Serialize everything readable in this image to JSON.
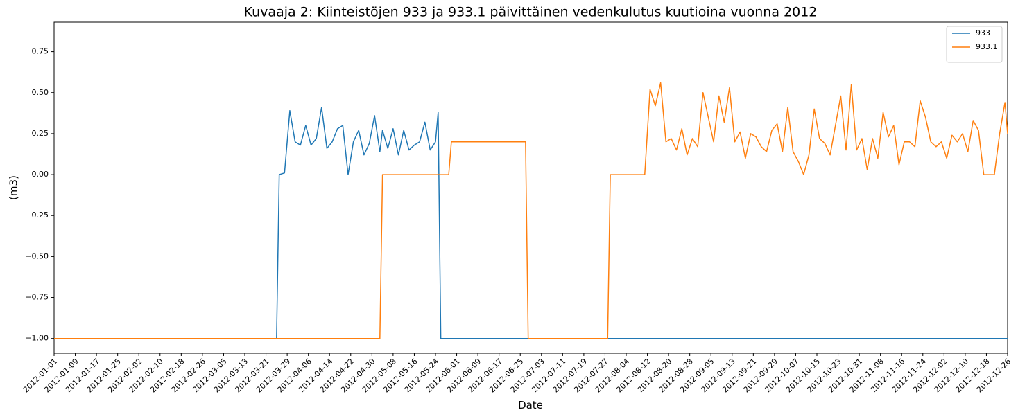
{
  "chart_data": {
    "type": "line",
    "title": "Kuvaaja 2: Kiinteistöjen 933 ja 933.1 päivittäinen vedenkulutus kuutioina vuonna 2012",
    "x_label": "Date",
    "y_label": "(m3)",
    "xlim": [
      "2012-01-01",
      "2012-12-26"
    ],
    "xticks": [
      "2012-01-01",
      "2012-01-09",
      "2012-01-17",
      "2012-01-25",
      "2012-02-02",
      "2012-02-10",
      "2012-02-18",
      "2012-02-26",
      "2012-03-05",
      "2012-03-13",
      "2012-03-21",
      "2012-03-29",
      "2012-04-06",
      "2012-04-14",
      "2012-04-22",
      "2012-04-30",
      "2012-05-08",
      "2012-05-16",
      "2012-05-24",
      "2012-06-01",
      "2012-06-09",
      "2012-06-17",
      "2012-06-25",
      "2012-07-03",
      "2012-07-11",
      "2012-07-19",
      "2012-07-27",
      "2012-08-04",
      "2012-08-12",
      "2012-08-20",
      "2012-08-28",
      "2012-09-05",
      "2012-09-13",
      "2012-09-21",
      "2012-09-29",
      "2012-10-07",
      "2012-10-15",
      "2012-10-23",
      "2012-10-31",
      "2012-11-08",
      "2012-11-16",
      "2012-11-24",
      "2012-12-02",
      "2012-12-10",
      "2012-12-18",
      "2012-12-26"
    ],
    "ylim": [
      -1.09,
      0.93
    ],
    "yticks": [
      {
        "value": -1,
        "label": "−1.00"
      },
      {
        "value": -0.75,
        "label": "−0.75"
      },
      {
        "value": -0.5,
        "label": "−0.50"
      },
      {
        "value": -0.25,
        "label": "−0.25"
      },
      {
        "value": 0,
        "label": "0.00"
      },
      {
        "value": 0.25,
        "label": "0.25"
      },
      {
        "value": 0.5,
        "label": "0.50"
      },
      {
        "value": 0.75,
        "label": "0.75"
      }
    ],
    "legend": "upper right",
    "x": [
      "2012-01-01",
      "2012-03-25",
      "2012-03-26",
      "2012-03-28",
      "2012-03-30",
      "2012-04-01",
      "2012-04-03",
      "2012-04-05",
      "2012-04-07",
      "2012-04-09",
      "2012-04-11",
      "2012-04-13",
      "2012-04-15",
      "2012-04-17",
      "2012-04-19",
      "2012-04-21",
      "2012-04-23",
      "2012-04-25",
      "2012-04-27",
      "2012-04-29",
      "2012-05-01",
      "2012-05-03",
      "2012-05-04",
      "2012-05-06",
      "2012-05-08",
      "2012-05-10",
      "2012-05-12",
      "2012-05-14",
      "2012-05-16",
      "2012-05-18",
      "2012-05-20",
      "2012-05-22",
      "2012-05-24",
      "2012-05-25",
      "2012-05-26",
      "2012-05-29",
      "2012-05-30",
      "2012-06-27",
      "2012-06-28",
      "2012-07-28",
      "2012-07-29",
      "2012-08-11",
      "2012-08-13",
      "2012-08-15",
      "2012-08-17",
      "2012-08-19",
      "2012-08-21",
      "2012-08-23",
      "2012-08-25",
      "2012-08-27",
      "2012-08-29",
      "2012-08-31",
      "2012-09-02",
      "2012-09-04",
      "2012-09-06",
      "2012-09-08",
      "2012-09-10",
      "2012-09-12",
      "2012-09-14",
      "2012-09-16",
      "2012-09-18",
      "2012-09-20",
      "2012-09-22",
      "2012-09-24",
      "2012-09-26",
      "2012-09-28",
      "2012-09-30",
      "2012-10-02",
      "2012-10-04",
      "2012-10-06",
      "2012-10-08",
      "2012-10-10",
      "2012-10-12",
      "2012-10-14",
      "2012-10-16",
      "2012-10-18",
      "2012-10-20",
      "2012-10-22",
      "2012-10-24",
      "2012-10-26",
      "2012-10-28",
      "2012-10-30",
      "2012-11-01",
      "2012-11-03",
      "2012-11-05",
      "2012-11-07",
      "2012-11-09",
      "2012-11-11",
      "2012-11-13",
      "2012-11-15",
      "2012-11-17",
      "2012-11-19",
      "2012-11-21",
      "2012-11-23",
      "2012-11-25",
      "2012-11-27",
      "2012-11-29",
      "2012-12-01",
      "2012-12-03",
      "2012-12-05",
      "2012-12-07",
      "2012-12-09",
      "2012-12-11",
      "2012-12-13",
      "2012-12-15",
      "2012-12-17",
      "2012-12-19",
      "2012-12-21",
      "2012-12-23",
      "2012-12-25",
      "2012-12-26"
    ],
    "series": [
      {
        "name": "933",
        "color": "#1f77b4",
        "values": [
          -1,
          -1,
          0,
          0.01,
          0.39,
          0.2,
          0.18,
          0.3,
          0.18,
          0.22,
          0.41,
          0.16,
          0.2,
          0.28,
          0.3,
          0,
          0.2,
          0.27,
          0.12,
          0.19,
          0.36,
          0.14,
          0.27,
          0.16,
          0.28,
          0.12,
          0.27,
          0.15,
          0.18,
          0.2,
          0.32,
          0.15,
          0.2,
          0.38,
          -1,
          -1,
          -1,
          -1,
          -1,
          -1,
          -1,
          -1,
          -1,
          -1,
          -1,
          -1,
          -1,
          -1,
          -1,
          -1,
          -1,
          -1,
          -1,
          -1,
          -1,
          -1,
          -1,
          -1,
          -1,
          -1,
          -1,
          -1,
          -1,
          -1,
          -1,
          -1,
          -1,
          -1,
          -1,
          -1,
          -1,
          -1,
          -1,
          -1,
          -1,
          -1,
          -1,
          -1,
          -1,
          -1,
          -1,
          -1,
          -1,
          -1,
          -1,
          -1,
          -1,
          -1,
          -1,
          -1,
          -1,
          -1,
          -1,
          -1,
          -1,
          -1,
          -1,
          -1,
          -1,
          -1,
          -1,
          -1,
          -1,
          -1,
          -1,
          -1,
          -1,
          -1,
          -1,
          -1,
          -1
        ]
      },
      {
        "name": "933.1",
        "color": "#ff7f0e",
        "values": [
          -1,
          -1,
          -1,
          -1,
          -1,
          -1,
          -1,
          -1,
          -1,
          -1,
          -1,
          -1,
          -1,
          -1,
          -1,
          -1,
          -1,
          -1,
          -1,
          -1,
          -1,
          -1,
          0,
          0,
          0,
          0,
          0,
          0,
          0,
          0,
          0,
          0,
          0,
          0,
          0,
          0,
          0.2,
          0.2,
          -1,
          -1,
          0,
          0,
          0.52,
          0.42,
          0.56,
          0.2,
          0.22,
          0.15,
          0.28,
          0.12,
          0.22,
          0.17,
          0.5,
          0.35,
          0.2,
          0.48,
          0.32,
          0.53,
          0.2,
          0.26,
          0.1,
          0.25,
          0.23,
          0.17,
          0.14,
          0.27,
          0.31,
          0.14,
          0.41,
          0.14,
          0.08,
          0,
          0.12,
          0.4,
          0.22,
          0.19,
          0.12,
          0.3,
          0.48,
          0.15,
          0.55,
          0.15,
          0.22,
          0.03,
          0.22,
          0.1,
          0.38,
          0.23,
          0.3,
          0.06,
          0.2,
          0.2,
          0.17,
          0.45,
          0.35,
          0.2,
          0.17,
          0.2,
          0.1,
          0.24,
          0.2,
          0.25,
          0.14,
          0.33,
          0.27,
          0,
          0,
          0,
          0.25,
          0.44,
          0.25
        ]
      }
    ]
  }
}
